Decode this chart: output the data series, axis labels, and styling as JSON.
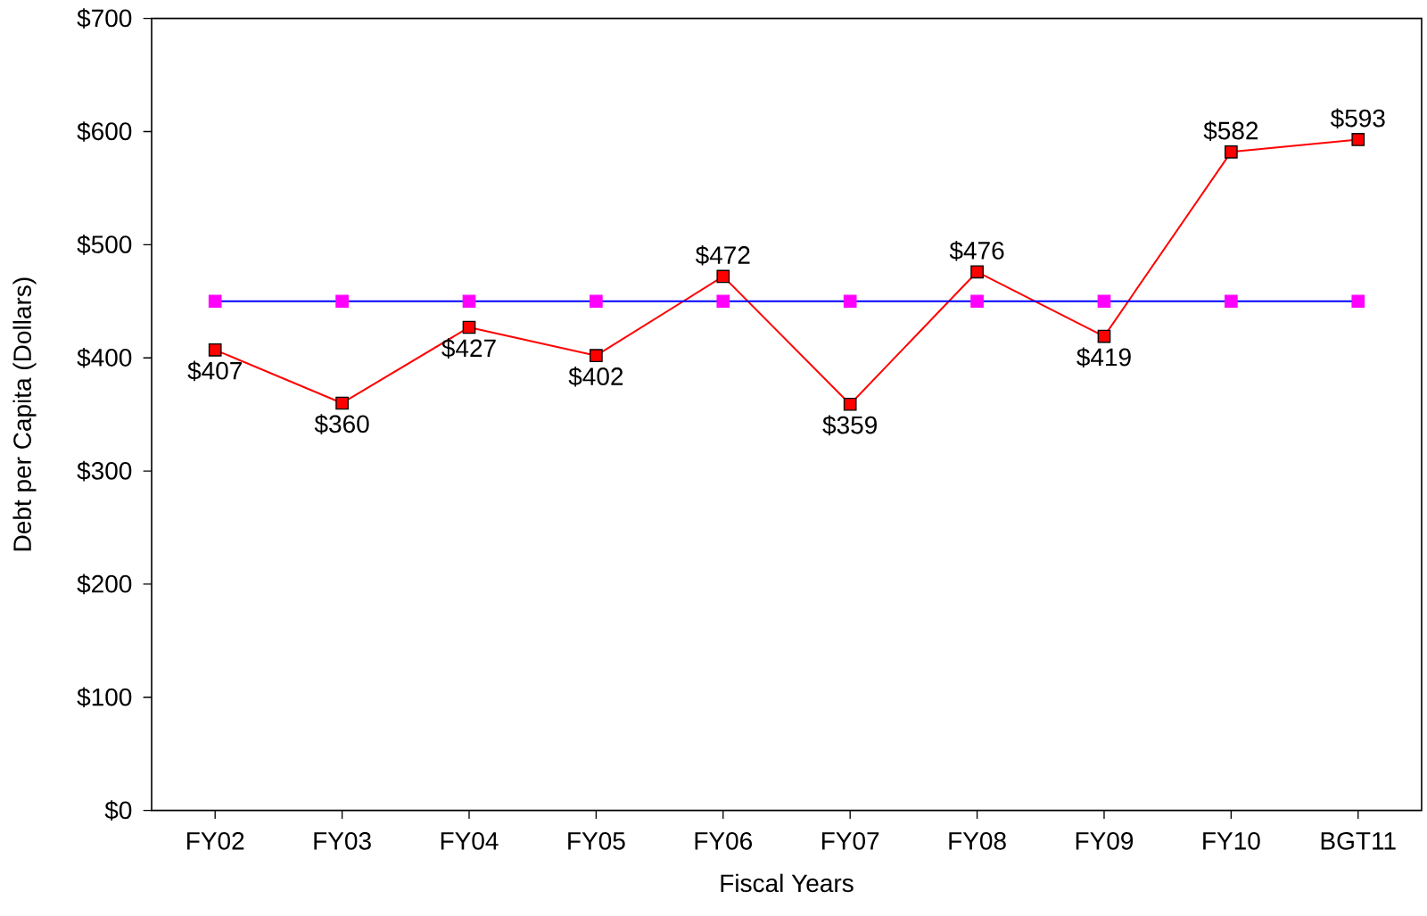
{
  "chart_data": {
    "type": "line",
    "xlabel": "Fiscal Years",
    "ylabel": "Debt per Capita (Dollars)",
    "categories": [
      "FY02",
      "FY03",
      "FY04",
      "FY05",
      "FY06",
      "FY07",
      "FY08",
      "FY09",
      "FY10",
      "BGT11"
    ],
    "series": [
      {
        "color": "#ff0000",
        "values": [
          407,
          360,
          427,
          402,
          472,
          359,
          476,
          419,
          582,
          593
        ],
        "value_labels": [
          "$407",
          "$360",
          "$427",
          "$402",
          "$472",
          "$359",
          "$476",
          "$419",
          "$582",
          "$593"
        ]
      },
      {
        "color": "#0000ff",
        "colors": [
          "#ff00ff",
          "#ff00ff",
          "#ff00ff",
          "#ff00ff",
          "#ff00ff",
          "#ff00ff",
          "#ff00ff",
          "#ff00ff",
          "#ff00ff",
          "#ff00ff"
        ],
        "values": [
          450,
          450,
          450,
          450,
          450,
          450,
          450,
          450,
          450,
          450
        ]
      }
    ],
    "ylim": [
      0,
      700
    ],
    "yticks": [
      {
        "value": 0,
        "label": "$0"
      },
      {
        "value": 100,
        "label": "$100"
      },
      {
        "value": 200,
        "label": "$200"
      },
      {
        "value": 300,
        "label": "$300"
      },
      {
        "value": 400,
        "label": "$400"
      },
      {
        "value": 500,
        "label": "$500"
      },
      {
        "value": 600,
        "label": "$600"
      },
      {
        "value": 700,
        "label": "$700"
      }
    ],
    "grid": false,
    "marker": "square",
    "line_style": "solid"
  }
}
